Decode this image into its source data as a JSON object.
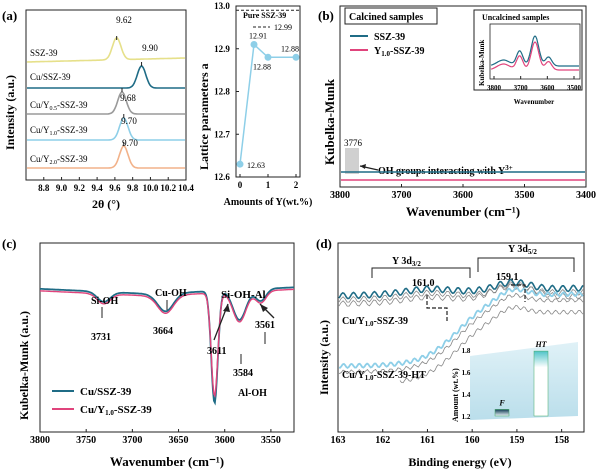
{
  "figure": {
    "colors": {
      "teal": "#1f6c86",
      "pink": "#e0447c",
      "grey": "#9a9a9a",
      "yellow": "#e6e08a",
      "blue": "#8ecfe8",
      "orange": "#f2b28a",
      "dark": "#222222"
    }
  },
  "chart_data": [
    {
      "type": "line",
      "panel": "(a)",
      "xlabel": "2θ (°)",
      "ylabel": "Intensity (a.u.)",
      "xlim": [
        8.6,
        10.4
      ],
      "x_ticks": [
        "8.8",
        "9.0",
        "9.2",
        "9.4",
        "9.6",
        "9.8",
        "10.0",
        "10.2",
        "10.4"
      ],
      "series": [
        {
          "name": "SSZ-39",
          "peak": 9.62,
          "color": "#e6e08a"
        },
        {
          "name": "Cu/SSZ-39",
          "peak": 9.9,
          "color": "#1f6c86"
        },
        {
          "name": "Cu/Y0.5-SSZ-39",
          "peak": 9.68,
          "color": "#9a9a9a"
        },
        {
          "name": "Cu/Y1.0-SSZ-39",
          "peak": 9.7,
          "color": "#8ecfe8"
        },
        {
          "name": "Cu/Y2.0-SSZ-39",
          "peak": 9.7,
          "color": "#f2b28a"
        }
      ],
      "labels": {
        "ssz": "SSZ-39",
        "cussz": "Cu/SSZ-39",
        "y05a": "Cu/Y",
        "y05b": "0.5",
        "y05c": "-SSZ-39",
        "y10a": "Cu/Y",
        "y10b": "1.0",
        "y10c": "-SSZ-39",
        "y20a": "Cu/Y",
        "y20b": "2.0",
        "y20c": "-SSZ-39"
      },
      "peak_labels": [
        "9.62",
        "9.90",
        "9.68",
        "9.70",
        "9.70"
      ]
    },
    {
      "type": "scatter",
      "panel": "(a) inset",
      "xlabel": "Amounts of Y(wt.%)",
      "ylabel": "Lattice parameters a",
      "ylim": [
        12.6,
        13.0
      ],
      "y_ticks": [
        "12.6",
        "12.7",
        "12.8",
        "12.9",
        "13.0"
      ],
      "x_ticks": [
        "0",
        "1",
        "2"
      ],
      "x": [
        0,
        0.5,
        1.0,
        2.0
      ],
      "y": [
        12.63,
        12.91,
        12.88,
        12.88
      ],
      "point_labels": [
        "12.63",
        "12.91",
        "12.88",
        "12.88"
      ],
      "reference": {
        "label": "Pure SSZ-39",
        "value": 12.99,
        "value_label": "12.99"
      }
    },
    {
      "type": "line",
      "panel": "(b)",
      "xlabel": "Wavenumber (cm⁻¹)",
      "ylabel": "Kubelka-Munk",
      "xlim": [
        3800,
        3400
      ],
      "x_ticks": [
        "3800",
        "3700",
        "3600",
        "3500",
        "3400"
      ],
      "title_box": "Calcined samples",
      "series": [
        {
          "name": "SSZ-39",
          "color": "#1f6c86"
        },
        {
          "name": "Y1.0-SSZ-39",
          "color": "#e0447c"
        }
      ],
      "legend": {
        "s1": "SSZ-39",
        "s2a": "Y",
        "s2b": "1.0",
        "s2c": "-SSZ-39"
      },
      "annotation": {
        "value": "3776",
        "text": "OH groups interacting with Y",
        "sup": "3+"
      },
      "inset": {
        "title": "Uncalcined samples",
        "ylabel": "Kubelka-Munk",
        "xlabel": "Wavenumber",
        "x_ticks": [
          "3800",
          "3700",
          "3600",
          "3500"
        ]
      }
    },
    {
      "type": "line",
      "panel": "(c)",
      "xlabel": "Wavenumber (cm⁻¹)",
      "ylabel": "Kubelka-Munk (a.u.)",
      "xlim": [
        3800,
        3525
      ],
      "x_ticks": [
        "3800",
        "3750",
        "3700",
        "3650",
        "3600",
        "3550"
      ],
      "series": [
        {
          "name": "Cu/SSZ-39",
          "color": "#1f6c86"
        },
        {
          "name": "Cu/Y1.0-SSZ-39",
          "color": "#e0447c"
        }
      ],
      "legend": {
        "s1": "Cu/SSZ-39",
        "s2a": "Cu/Y",
        "s2b": "1.0",
        "s2c": "-SSZ-39"
      },
      "annotations": [
        "Si-OH",
        "3731",
        "Cu-OH",
        "3664",
        "Si-OH-Al",
        "3611",
        "3561",
        "3584",
        "Al-OH"
      ]
    },
    {
      "type": "line",
      "panel": "(d)",
      "xlabel": "Binding energy (eV)",
      "ylabel": "Intensity (a.u.)",
      "xlim": [
        163,
        157.5
      ],
      "x_ticks": [
        "163",
        "162",
        "161",
        "160",
        "159",
        "158"
      ],
      "bracket_labels": {
        "y32a": "Y 3d",
        "y32b": "3/2",
        "y52a": "Y 3d",
        "y52b": "5/2"
      },
      "peaks": [
        "161.0",
        "159.1"
      ],
      "sample_labels": {
        "a1": "Cu/Y",
        "a2": "1.0",
        "a3": "-SSZ-39",
        "b1": "Cu/Y",
        "b2": "1.0",
        "b3": "-SSZ-39-HT"
      },
      "inset": {
        "ylabel": "Amount (wt.%)",
        "y_ticks": [
          "1.2",
          "1.4",
          "1.6",
          "1.8"
        ],
        "bars": [
          {
            "label": "F",
            "value": 1.26
          },
          {
            "label": "HT",
            "value": 1.79
          }
        ]
      }
    }
  ]
}
